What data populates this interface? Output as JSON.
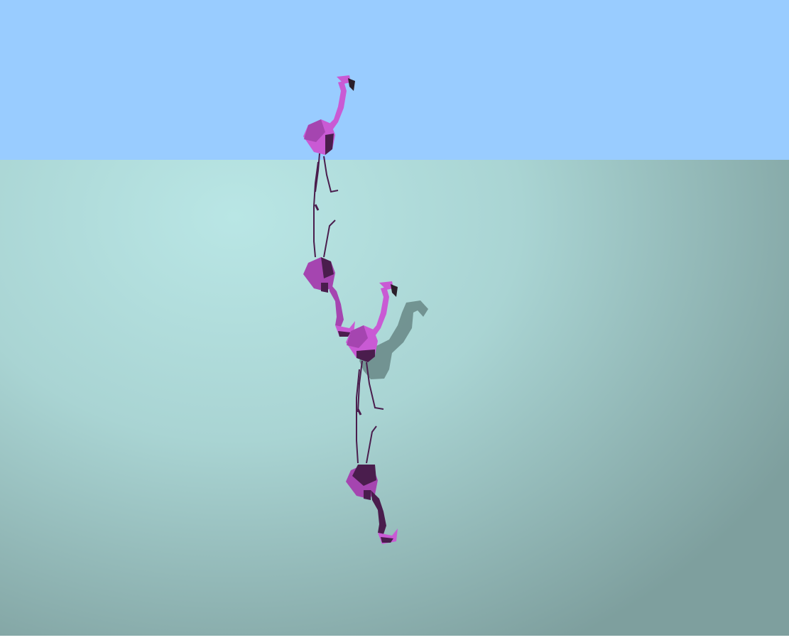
{
  "scene": {
    "description_tag": "flamingos",
    "colors": {
      "sky": "#99ccff",
      "water_light": "#b9e6e5",
      "water_dark": "#7e9f9e",
      "flamingo_light": "#c95ad4",
      "flamingo_mid": "#a545b0",
      "flamingo_dark": "#4a1d4d",
      "shadow": "#5f7c7b",
      "beak_tip": "#2a1f2a"
    },
    "objects": [
      "flamingo",
      "flamingo-reflection",
      "flamingo",
      "flamingo-reflection",
      "flamingo-shadow"
    ]
  }
}
